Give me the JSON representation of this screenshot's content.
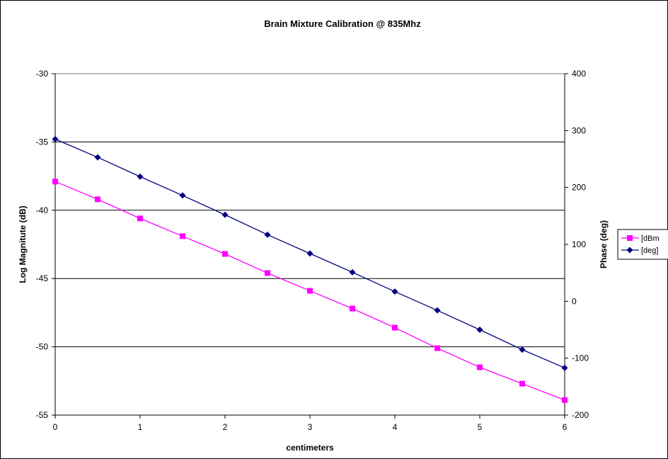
{
  "chart_data": {
    "type": "line",
    "title": "Brain Mixture Calibration @ 835Mhz",
    "xlabel": "centimeters",
    "ylabel_left": "Log Magnitute (dB)",
    "ylabel_right": "Phase (deg)",
    "xlim": [
      0,
      6
    ],
    "ylim_left": [
      -55,
      -30
    ],
    "ylim_right": [
      -200,
      400
    ],
    "x_ticks": [
      "0",
      "1",
      "2",
      "3",
      "4",
      "5",
      "6"
    ],
    "y_left_ticks": [
      "-30",
      "-35",
      "-40",
      "-45",
      "-50",
      "-55"
    ],
    "y_right_ticks": [
      "400",
      "300",
      "200",
      "100",
      "0",
      "-100",
      "-200"
    ],
    "x_tick_values": [
      0,
      1,
      2,
      3,
      4,
      5,
      6
    ],
    "y_left_tick_values": [
      -30,
      -35,
      -40,
      -45,
      -50,
      -55
    ],
    "y_right_tick_values": [
      400,
      300,
      200,
      100,
      0,
      -100,
      -200
    ],
    "gridlines": "horizontal",
    "legend_position": "right",
    "x": [
      0,
      0.5,
      1,
      1.5,
      2,
      2.5,
      3,
      3.5,
      4,
      4.5,
      5,
      5.5,
      6
    ],
    "series": [
      {
        "name": "[dBm",
        "axis": "left",
        "color": "#ff00ff",
        "marker": "square",
        "values": [
          -37.9,
          -39.2,
          -40.6,
          -41.9,
          -43.2,
          -44.6,
          -45.9,
          -47.2,
          -48.6,
          -50.1,
          -51.5,
          -52.7,
          -53.9
        ]
      },
      {
        "name": "[deg]",
        "axis": "right",
        "color": "#000080",
        "marker": "diamond",
        "values": [
          285,
          253,
          219,
          186,
          152,
          117,
          84,
          51,
          17,
          -16,
          -50,
          -85,
          -117
        ]
      }
    ]
  }
}
